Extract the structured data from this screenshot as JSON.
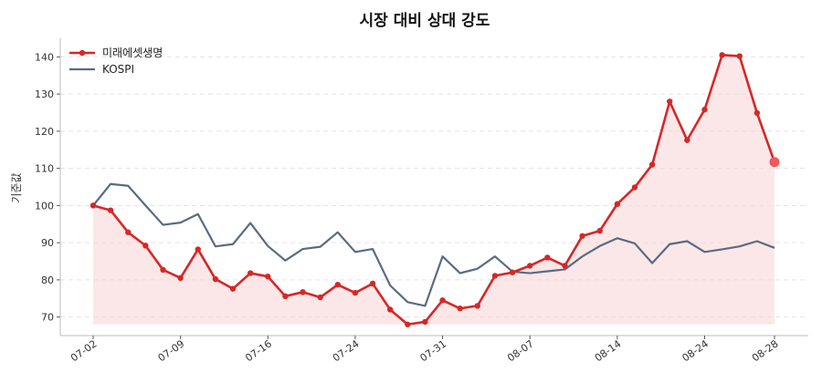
{
  "chart_data": {
    "type": "line",
    "title": "시장 대비 상대 강도",
    "xlabel": "",
    "ylabel": "기준값",
    "ylim": [
      65,
      145
    ],
    "yticks": [
      70,
      80,
      90,
      100,
      110,
      120,
      130,
      140
    ],
    "xtick_labels": [
      "07-02",
      "07-09",
      "07-16",
      "07-24",
      "07-31",
      "08-07",
      "08-14",
      "08-24",
      "08-28"
    ],
    "xtick_index": [
      0,
      5,
      10,
      15,
      20,
      25,
      30,
      35,
      39
    ],
    "grid": true,
    "legend_position": "top-left",
    "fill_baseline": 68,
    "colors": {
      "stock": "#d62728",
      "index": "#5a6b82",
      "fill": "#f8d7d7"
    },
    "series": [
      {
        "name": "미래에셋생명",
        "values": [
          100.0,
          98.7,
          92.8,
          89.2,
          82.7,
          80.5,
          88.2,
          80.2,
          77.6,
          81.8,
          80.9,
          75.6,
          76.7,
          75.3,
          78.7,
          76.5,
          79.0,
          72.0,
          68.0,
          68.7,
          74.5,
          72.3,
          73.0,
          81.1,
          82.0,
          83.8,
          86.0,
          83.8,
          91.8,
          93.2,
          100.4,
          104.9,
          111.0,
          128.0,
          117.6,
          125.8,
          140.5,
          140.2,
          124.9,
          111.7
        ]
      },
      {
        "name": "KOSPI",
        "values": [
          100.0,
          105.8,
          105.3,
          100.0,
          94.8,
          95.4,
          97.7,
          89.0,
          89.6,
          95.3,
          89.1,
          85.2,
          88.3,
          88.9,
          92.8,
          87.5,
          88.3,
          78.5,
          74.0,
          73.0,
          86.3,
          81.8,
          83.0,
          86.3,
          82.2,
          81.8,
          82.3,
          82.8,
          86.3,
          89.1,
          91.2,
          89.8,
          84.5,
          89.6,
          90.4,
          87.5,
          88.2,
          89.0,
          90.4,
          88.6
        ]
      }
    ]
  }
}
